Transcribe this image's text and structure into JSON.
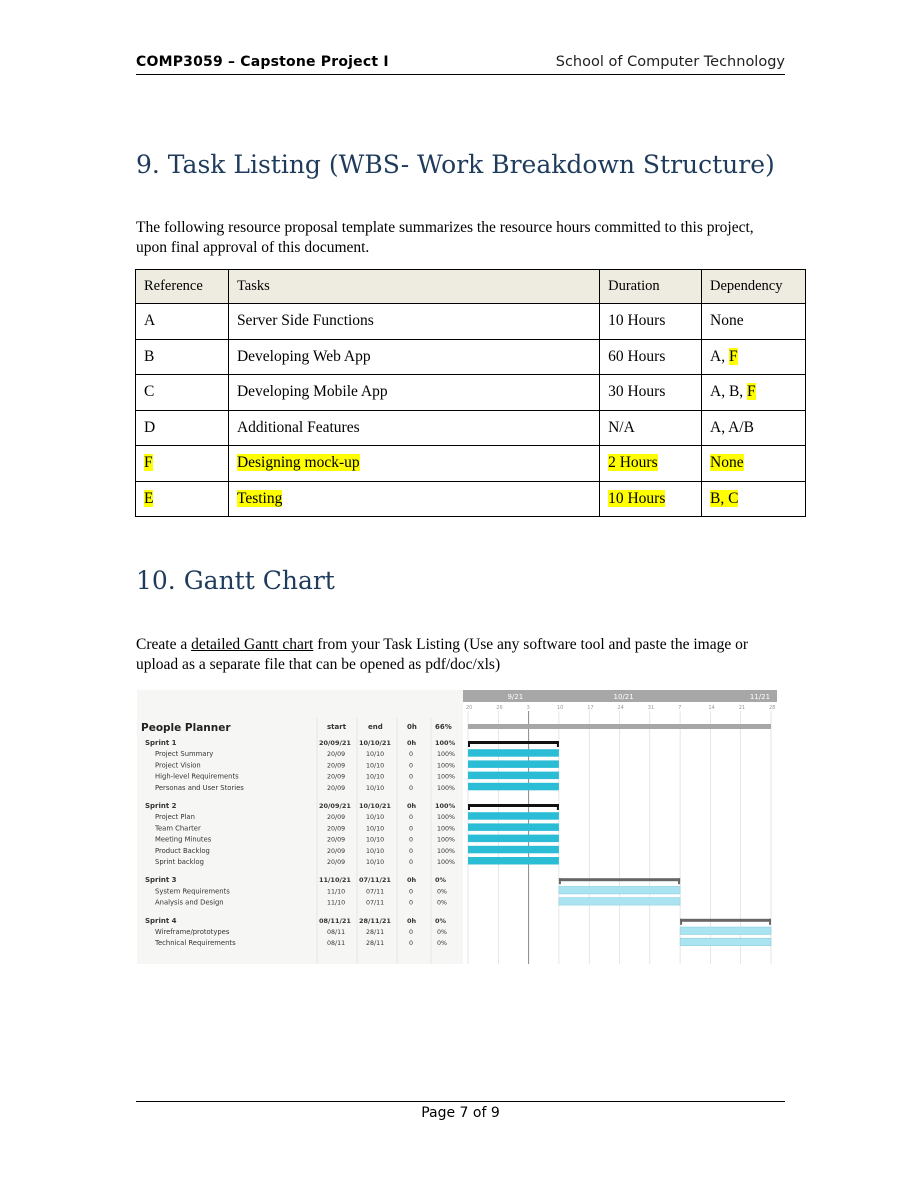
{
  "header": {
    "course": "COMP3059 – Capstone Project I",
    "school": "School of Computer Technology"
  },
  "section9": {
    "title": "9. Task Listing (WBS- Work Breakdown Structure)",
    "intro": "The following resource proposal template summarizes the resource hours committed to this project, upon final approval of this document.",
    "columns": [
      "Reference",
      "Tasks",
      "Duration",
      "Dependency"
    ],
    "rows": [
      {
        "ref": "A",
        "task": "Server Side Functions",
        "duration": "10 Hours",
        "dep_a": "None",
        "dep_b": "",
        "hl_row": false,
        "hl_dep": false
      },
      {
        "ref": "B",
        "task": "Developing Web App",
        "duration": "60 Hours",
        "dep_a": "A, ",
        "dep_b": "F",
        "hl_row": false,
        "hl_dep": true
      },
      {
        "ref": "C",
        "task": "Developing Mobile App",
        "duration": "30 Hours",
        "dep_a": "A, B, ",
        "dep_b": "F",
        "hl_row": false,
        "hl_dep": true
      },
      {
        "ref": "D",
        "task": "Additional Features",
        "duration": "N/A",
        "dep_a": "A, A/B",
        "dep_b": "",
        "hl_row": false,
        "hl_dep": false
      },
      {
        "ref": "F",
        "task": "Designing mock-up",
        "duration": "2 Hours",
        "dep_a": "None",
        "dep_b": "",
        "hl_row": true,
        "hl_dep": false
      },
      {
        "ref": "E",
        "task": "Testing",
        "duration": "10 Hours",
        "dep_a": "B, C",
        "dep_b": "",
        "hl_row": true,
        "hl_dep": false
      }
    ]
  },
  "section10": {
    "title": "10. Gantt Chart",
    "intro_pre": "Create a ",
    "intro_link": "detailed Gantt chart",
    "intro_post": " from your Task Listing (Use any software tool and paste the image or upload as a separate file that can be opened as pdf/doc/xls)"
  },
  "chart_data": {
    "type": "table",
    "title": "People Planner",
    "columns": [
      "start",
      "end",
      "0h",
      "66%"
    ],
    "months": [
      "9/21",
      "10/21",
      "11/21"
    ],
    "day_ticks": [
      "20",
      "26",
      "3",
      "10",
      "17",
      "24",
      "31",
      "7",
      "14",
      "21",
      "28"
    ],
    "groups": [
      {
        "name": "Sprint 1",
        "start": "20/09/21",
        "end": "10/10/21",
        "hours": "0h",
        "pct": "100%",
        "bar": [
          0,
          3
        ],
        "done": true,
        "tasks": [
          {
            "name": "Project Summary",
            "start": "20/09",
            "end": "10/10",
            "hours": "0",
            "pct": "100%"
          },
          {
            "name": "Project Vision",
            "start": "20/09",
            "end": "10/10",
            "hours": "0",
            "pct": "100%"
          },
          {
            "name": "High-level Requirements",
            "start": "20/09",
            "end": "10/10",
            "hours": "0",
            "pct": "100%"
          },
          {
            "name": "Personas and User Stories",
            "start": "20/09",
            "end": "10/10",
            "hours": "0",
            "pct": "100%"
          }
        ]
      },
      {
        "name": "Sprint 2",
        "start": "20/09/21",
        "end": "10/10/21",
        "hours": "0h",
        "pct": "100%",
        "bar": [
          0,
          3
        ],
        "done": true,
        "tasks": [
          {
            "name": "Project Plan",
            "start": "20/09",
            "end": "10/10",
            "hours": "0",
            "pct": "100%"
          },
          {
            "name": "Team Charter",
            "start": "20/09",
            "end": "10/10",
            "hours": "0",
            "pct": "100%"
          },
          {
            "name": "Meeting Minutes",
            "start": "20/09",
            "end": "10/10",
            "hours": "0",
            "pct": "100%"
          },
          {
            "name": "Product Backlog",
            "start": "20/09",
            "end": "10/10",
            "hours": "0",
            "pct": "100%"
          },
          {
            "name": "Sprint backlog",
            "start": "20/09",
            "end": "10/10",
            "hours": "0",
            "pct": "100%"
          }
        ]
      },
      {
        "name": "Sprint 3",
        "start": "11/10/21",
        "end": "07/11/21",
        "hours": "0h",
        "pct": "0%",
        "bar": [
          3,
          7
        ],
        "done": false,
        "tasks": [
          {
            "name": "System Requirements",
            "start": "11/10",
            "end": "07/11",
            "hours": "0",
            "pct": "0%"
          },
          {
            "name": "Analysis and Design",
            "start": "11/10",
            "end": "07/11",
            "hours": "0",
            "pct": "0%"
          }
        ]
      },
      {
        "name": "Sprint 4",
        "start": "08/11/21",
        "end": "28/11/21",
        "hours": "0h",
        "pct": "0%",
        "bar": [
          7,
          10
        ],
        "done": false,
        "tasks": [
          {
            "name": "Wireframe/prototypes",
            "start": "08/11",
            "end": "28/11",
            "hours": "0",
            "pct": "0%"
          },
          {
            "name": "Technical Requirements",
            "start": "08/11",
            "end": "28/11",
            "hours": "0",
            "pct": "0%"
          }
        ]
      }
    ],
    "colors": {
      "done": "#2bbcd6",
      "todo": "#a9e4f0",
      "header": "#a7a7a7"
    }
  },
  "footer": {
    "page": "Page 7 of 9"
  }
}
